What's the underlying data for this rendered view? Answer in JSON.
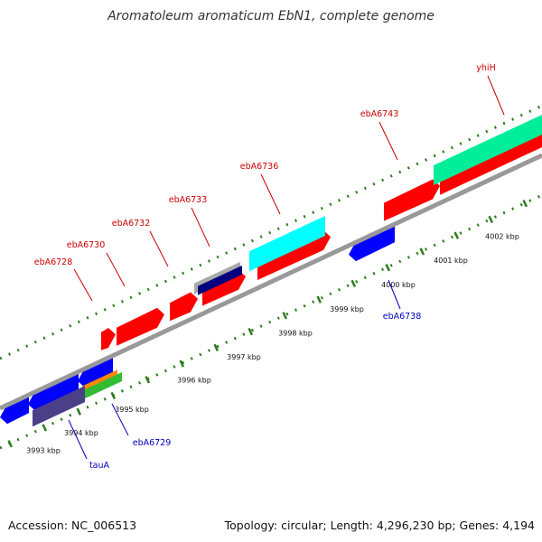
{
  "title": "Aromatoleum aromaticum EbN1, complete genome",
  "footer": {
    "accession": "Accession: NC_006513",
    "summary": "Topology: circular; Length: 4,296,230 bp; Genes: 4,194"
  },
  "colors": {
    "backbone": "#999999",
    "forward_label": "#cc0000",
    "reverse_label": "#0000bb",
    "tick_mark": "#2e7d1f"
  },
  "ticks": [
    "3993 kbp",
    "3994 kbp",
    "3995 kbp",
    "3996 kbp",
    "3997 kbp",
    "3998 kbp",
    "3999 kbp",
    "4000 kbp",
    "4001 kbp",
    "4002 kbp"
  ],
  "gene_labels": [
    {
      "name": "ebA6728",
      "strand": "forward"
    },
    {
      "name": "ebA6730",
      "strand": "forward"
    },
    {
      "name": "ebA6732",
      "strand": "forward"
    },
    {
      "name": "ebA6733",
      "strand": "forward"
    },
    {
      "name": "ebA6736",
      "strand": "forward"
    },
    {
      "name": "ebA6743",
      "strand": "forward"
    },
    {
      "name": "yhiH",
      "strand": "forward"
    },
    {
      "name": "tauA",
      "strand": "reverse"
    },
    {
      "name": "ebA6729",
      "strand": "reverse"
    },
    {
      "name": "ebA6738",
      "strand": "reverse"
    }
  ],
  "features": [
    {
      "color": "#ff0000"
    },
    {
      "color": "#ff0000"
    },
    {
      "color": "#ff0000"
    },
    {
      "color": "#ff0000"
    },
    {
      "color": "#ff0000"
    },
    {
      "color": "#ff0000"
    },
    {
      "color": "#ff0000"
    },
    {
      "color": "#aaaaaa"
    },
    {
      "color": "#000080"
    },
    {
      "color": "#00ffff"
    },
    {
      "color": "#00ee99"
    },
    {
      "color": "#0000ff"
    },
    {
      "color": "#0000ff"
    },
    {
      "color": "#0000ff"
    },
    {
      "color": "#0000ff"
    },
    {
      "color": "#ff8800"
    },
    {
      "color": "#33bb33"
    },
    {
      "color": "#4b3f88"
    }
  ]
}
